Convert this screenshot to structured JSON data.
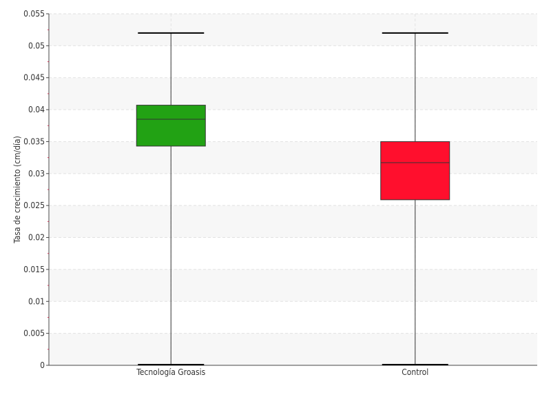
{
  "chart_data": {
    "type": "boxplot",
    "title": "",
    "xlabel": "",
    "ylabel": "Tasa de crecimiento (cm/día)",
    "ylim": [
      0,
      0.055
    ],
    "yticks": [
      0,
      0.005,
      0.01,
      0.015,
      0.02,
      0.025,
      0.03,
      0.035,
      0.04,
      0.045,
      0.05,
      0.055
    ],
    "ytick_labels": [
      "0",
      "0.005",
      "0.01",
      "0.015",
      "0.02",
      "0.025",
      "0.03",
      "0.035",
      "0.04",
      "0.045",
      "0.05",
      "0.055"
    ],
    "grid": true,
    "legend": "none",
    "categories": [
      "Tecnología Groasis",
      "Control"
    ],
    "boxes": [
      {
        "category": "Tecnología Groasis",
        "min": 0.0,
        "q1": 0.0343,
        "median": 0.0385,
        "q3": 0.0407,
        "max": 0.052,
        "color": "#22a214"
      },
      {
        "category": "Control",
        "min": 0.0,
        "q1": 0.0259,
        "median": 0.0317,
        "q3": 0.035,
        "max": 0.052,
        "color": "#ff0f2d"
      }
    ]
  }
}
